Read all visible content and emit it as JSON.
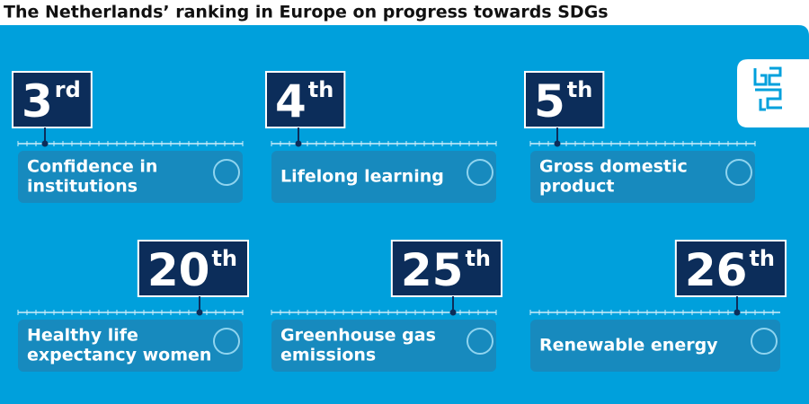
{
  "title": "The Netherlands’ ranking in Europe on progress towards SDGs",
  "items": [
    {
      "rank": 3,
      "suffix": "rd",
      "label": [
        "Confidence in",
        "institutions"
      ]
    },
    {
      "rank": 4,
      "suffix": "th",
      "label": [
        "Lifelong learning"
      ]
    },
    {
      "rank": 5,
      "suffix": "th",
      "label": [
        "Gross domestic",
        "product"
      ]
    },
    {
      "rank": 20,
      "suffix": "th",
      "label": [
        "Healthy life",
        "expectancy women"
      ]
    },
    {
      "rank": 25,
      "suffix": "th",
      "label": [
        "Greenhouse gas",
        "emissions"
      ]
    },
    {
      "rank": 26,
      "suffix": "th",
      "label": [
        "Renewable energy"
      ]
    }
  ]
}
